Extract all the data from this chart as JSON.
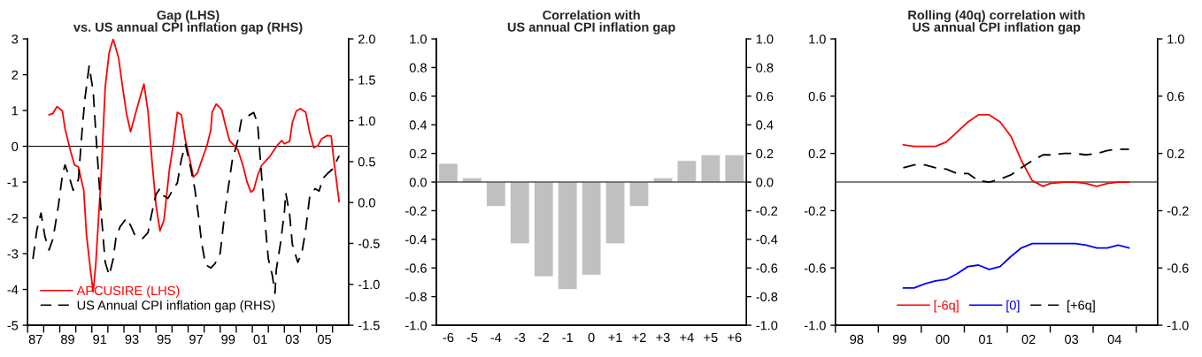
{
  "chart_data": [
    {
      "type": "line",
      "title": "Gap (LHS)\nvs. US annual CPI inflation gap (RHS)",
      "xlim": [
        "1987-01-01",
        "2007-01-01"
      ],
      "xticks": [
        {
          "value": "1987-01-01",
          "label": null
        },
        {
          "value": "1987-07-01",
          "label": "87"
        },
        {
          "value": "1988-01-01",
          "label": null
        },
        {
          "value": "1989-01-01",
          "label": null
        },
        {
          "value": "1989-07-01",
          "label": "89"
        },
        {
          "value": "1990-01-01",
          "label": null
        },
        {
          "value": "1991-01-01",
          "label": null
        },
        {
          "value": "1991-07-01",
          "label": "91"
        },
        {
          "value": "1992-01-01",
          "label": null
        },
        {
          "value": "1993-01-01",
          "label": null
        },
        {
          "value": "1993-07-01",
          "label": "93"
        },
        {
          "value": "1994-01-01",
          "label": null
        },
        {
          "value": "1995-01-01",
          "label": null
        },
        {
          "value": "1995-07-01",
          "label": "95"
        },
        {
          "value": "1996-01-01",
          "label": null
        },
        {
          "value": "1997-01-01",
          "label": null
        },
        {
          "value": "1997-07-01",
          "label": "97"
        },
        {
          "value": "1998-01-01",
          "label": null
        },
        {
          "value": "1999-01-01",
          "label": null
        },
        {
          "value": "1999-07-01",
          "label": "99"
        },
        {
          "value": "2000-01-01",
          "label": null
        },
        {
          "value": "2001-01-01",
          "label": null
        },
        {
          "value": "2001-07-01",
          "label": "01"
        },
        {
          "value": "2002-01-01",
          "label": null
        },
        {
          "value": "2003-01-01",
          "label": null
        },
        {
          "value": "2003-07-01",
          "label": "03"
        },
        {
          "value": "2004-01-01",
          "label": null
        },
        {
          "value": "2005-01-01",
          "label": null
        },
        {
          "value": "2005-07-01",
          "label": "05"
        },
        {
          "value": "2006-01-01",
          "label": null
        }
      ],
      "ylim": [
        -5,
        3
      ],
      "yticks": [
        -5,
        -4,
        -3,
        -2,
        -1,
        0,
        1,
        2,
        3
      ],
      "y2lim": [
        -1.5,
        2.0
      ],
      "y2ticks": [
        {
          "value": -1.5,
          "label": "-1.5"
        },
        {
          "value": -1.0,
          "label": "-1.0"
        },
        {
          "value": -0.5,
          "label": "-0.5"
        },
        {
          "value": 0,
          "label": "0.0"
        },
        {
          "value": 0.5,
          "label": "0.5"
        },
        {
          "value": 1.0,
          "label": "1.0"
        },
        {
          "value": 1.5,
          "label": "1.5"
        },
        {
          "value": 2.0,
          "label": "2.0"
        }
      ],
      "ref_lines": [
        {
          "axis": "y",
          "value": 0,
          "color": "#000000"
        }
      ],
      "legend": "bottom left",
      "series": [
        {
          "name": "APCUSIRE (LHS)",
          "color": "#ff0000",
          "line_style": "solid",
          "x": [
            "1988-05",
            "1988-08",
            "1988-11",
            "1989-03",
            "1989-05",
            "1989-09",
            "1989-12",
            "1990-03",
            "1990-07",
            "1990-09",
            "1990-12",
            "1991-02",
            "1991-04",
            "1991-08",
            "1991-11",
            "1992-02",
            "1992-05",
            "1992-09",
            "1992-12",
            "1993-03",
            "1993-06",
            "1993-09",
            "1993-12",
            "1994-04",
            "1994-07",
            "1994-10",
            "1995-01",
            "1995-04",
            "1995-07",
            "1995-11",
            "1996-02",
            "1996-05",
            "1996-08",
            "1996-11",
            "1997-02",
            "1997-05",
            "1997-08",
            "1997-11",
            "1998-03",
            "1998-06",
            "1998-07",
            "1998-10",
            "1999-02",
            "1999-05",
            "1999-08",
            "1999-11",
            "2000-02",
            "2000-06",
            "2000-09",
            "2000-12",
            "2001-02",
            "2001-05",
            "2001-08",
            "2001-11",
            "2002-02",
            "2002-05",
            "2002-08",
            "2002-11",
            "2003-01",
            "2003-05",
            "2003-07",
            "2003-10",
            "2004-01",
            "2004-05",
            "2004-08",
            "2004-11",
            "2005-02",
            "2005-05",
            "2005-09",
            "2005-12",
            "2006-02",
            "2006-06"
          ],
          "values": [
            0.88,
            0.92,
            1.11,
            0.99,
            0.49,
            -0.12,
            -0.52,
            -0.58,
            -1.23,
            -2.47,
            -3.46,
            -4.07,
            -3.29,
            -0.82,
            1.65,
            2.63,
            3.0,
            2.47,
            1.65,
            0.91,
            0.41,
            0.82,
            1.23,
            1.74,
            0.99,
            -0.41,
            -1.65,
            -2.36,
            -2.06,
            -0.66,
            0.08,
            0.95,
            0.88,
            0.16,
            -0.33,
            -0.86,
            -0.74,
            -0.41,
            0,
            0.45,
            0.95,
            1.18,
            1.03,
            0.58,
            0.16,
            0.04,
            -0.08,
            -0.53,
            -0.99,
            -1.28,
            -1.22,
            -0.82,
            -0.53,
            -0.41,
            -0.29,
            -0.12,
            0.04,
            0.16,
            0.07,
            0.14,
            0.66,
            0.99,
            1.05,
            0.95,
            0.37,
            -0.04,
            0.02,
            0.21,
            0.3,
            0.29,
            -0.41,
            -1.55
          ]
        },
        {
          "name": "US Annual CPI inflation gap (RHS)",
          "color": "#000000",
          "line_style": "dashed",
          "axis": "y2",
          "x": [
            "1987-05",
            "1987-08",
            "1987-11",
            "1988-02",
            "1988-05",
            "1988-08",
            "1988-12",
            "1989-03",
            "1989-05",
            "1989-08",
            "1989-11",
            "1990-03",
            "1990-06",
            "1990-08",
            "1990-11",
            "1991-02",
            "1991-04",
            "1991-08",
            "1991-11",
            "1992-02",
            "1992-05",
            "1992-07",
            "1992-10",
            "1993-03",
            "1993-06",
            "1993-09",
            "1993-12",
            "1994-03",
            "1994-07",
            "1994-10",
            "1995-01",
            "1995-04",
            "1995-07",
            "1995-10",
            "1996-02",
            "1996-05",
            "1996-08",
            "1996-11",
            "1997-03",
            "1997-06",
            "1997-09",
            "1997-11",
            "1998-02",
            "1998-06",
            "1998-09",
            "1999-01",
            "1999-04",
            "1999-07",
            "1999-10",
            "2000-02",
            "2000-05",
            "2000-08",
            "2000-11",
            "2001-02",
            "2001-05",
            "2001-08",
            "2001-11",
            "2002-01",
            "2002-04",
            "2002-06",
            "2002-07",
            "2002-10",
            "2003-01",
            "2003-02",
            "2003-05",
            "2003-07",
            "2003-11",
            "2004-02",
            "2004-05",
            "2004-08",
            "2004-12",
            "2005-03",
            "2005-06",
            "2005-09",
            "2006-01",
            "2006-06"
          ],
          "values": [
            -0.69,
            -0.33,
            -0.13,
            -0.42,
            -0.58,
            -0.44,
            -0.04,
            0.33,
            0.46,
            0.32,
            0.15,
            0.28,
            0.93,
            1.29,
            1.67,
            1.36,
            0.86,
            -0.12,
            -0.73,
            -0.89,
            -0.69,
            -0.44,
            -0.3,
            -0.19,
            -0.28,
            -0.39,
            -0.4,
            -0.44,
            -0.37,
            -0.12,
            0.1,
            0.17,
            0.08,
            0.05,
            0.17,
            0.24,
            0.53,
            0.71,
            0.42,
            0.17,
            -0.19,
            -0.48,
            -0.76,
            -0.8,
            -0.75,
            -0.62,
            -0.19,
            0.17,
            0.51,
            0.75,
            1.02,
            1.04,
            1.07,
            1.1,
            0.97,
            0.32,
            -0.33,
            -0.69,
            -0.89,
            -1.11,
            -0.82,
            -0.51,
            -0.12,
            0.12,
            -0.15,
            -0.51,
            -0.73,
            -0.62,
            -0.33,
            0.08,
            0.17,
            0.14,
            0.3,
            0.35,
            0.41,
            0.57
          ]
        }
      ]
    },
    {
      "type": "bar",
      "title": "Correlation with\nUS annual CPI inflation gap",
      "categories": [
        "-6",
        "-5",
        "-4",
        "-3",
        "-2",
        "-1",
        "0",
        "+1",
        "+2",
        "+3",
        "+4",
        "+5",
        "+6"
      ],
      "values": [
        0.13,
        0.03,
        -0.17,
        -0.43,
        -0.66,
        -0.75,
        -0.65,
        -0.43,
        -0.17,
        0.03,
        0.15,
        0.19,
        0.19
      ],
      "color": "#c0c0c0",
      "ylim": [
        -1.0,
        1.0
      ],
      "yticks": [
        {
          "value": -1.0,
          "label": "-1.0"
        },
        {
          "value": -0.8,
          "label": "-0.8"
        },
        {
          "value": -0.6,
          "label": "-0.6"
        },
        {
          "value": -0.4,
          "label": "-0.4"
        },
        {
          "value": -0.2,
          "label": "-0.2"
        },
        {
          "value": 0,
          "label": "0.0"
        },
        {
          "value": 0.2,
          "label": "0.2"
        },
        {
          "value": 0.4,
          "label": "0.4"
        },
        {
          "value": 0.6,
          "label": "0.6"
        },
        {
          "value": 0.8,
          "label": "0.8"
        },
        {
          "value": 1.0,
          "label": "1.0"
        }
      ],
      "y2lim": [
        -1.0,
        1.0
      ],
      "y2ticks": [
        {
          "value": -1.0,
          "label": "-1.0"
        },
        {
          "value": -0.8,
          "label": "-0.8"
        },
        {
          "value": -0.6,
          "label": "-0.6"
        },
        {
          "value": -0.4,
          "label": "-0.4"
        },
        {
          "value": -0.2,
          "label": "-0.2"
        },
        {
          "value": 0,
          "label": "0.0"
        },
        {
          "value": 0.2,
          "label": "0.2"
        },
        {
          "value": 0.4,
          "label": "0.4"
        },
        {
          "value": 0.6,
          "label": "0.6"
        },
        {
          "value": 0.8,
          "label": "0.8"
        },
        {
          "value": 1.0,
          "label": "1.0"
        }
      ],
      "ref_lines": [
        {
          "axis": "y",
          "value": 0,
          "color": "#000000"
        }
      ]
    },
    {
      "type": "line",
      "title": "Rolling (40q) correlation with\nUS annual CPI inflation gap",
      "xlim": [
        "1998-01-01",
        "2005-07-01"
      ],
      "xticks": [
        {
          "value": "1998-01-01",
          "label": null
        },
        {
          "value": "1998-07-01",
          "label": "98"
        },
        {
          "value": "1999-01-01",
          "label": null
        },
        {
          "value": "1999-07-01",
          "label": "99"
        },
        {
          "value": "2000-01-01",
          "label": null
        },
        {
          "value": "2000-07-01",
          "label": "00"
        },
        {
          "value": "2001-01-01",
          "label": null
        },
        {
          "value": "2001-07-01",
          "label": "01"
        },
        {
          "value": "2002-01-01",
          "label": null
        },
        {
          "value": "2002-07-01",
          "label": "02"
        },
        {
          "value": "2003-01-01",
          "label": null
        },
        {
          "value": "2003-07-01",
          "label": "03"
        },
        {
          "value": "2004-01-01",
          "label": null
        },
        {
          "value": "2004-07-01",
          "label": "04"
        },
        {
          "value": "2005-01-01",
          "label": null
        }
      ],
      "ylim": [
        -1.0,
        1.0
      ],
      "yticks": [
        {
          "value": -1.0,
          "label": "-1.0"
        },
        {
          "value": -0.6,
          "label": "-0.6"
        },
        {
          "value": -0.2,
          "label": "-0.2"
        },
        {
          "value": 0.2,
          "label": "0.2"
        },
        {
          "value": 0.6,
          "label": "0.6"
        },
        {
          "value": 1.0,
          "label": "1.0"
        }
      ],
      "y2lim": [
        -1.0,
        1.0
      ],
      "y2ticks": [
        {
          "value": -1.0,
          "label": "-1.0"
        },
        {
          "value": -0.6,
          "label": "-0.6"
        },
        {
          "value": -0.2,
          "label": "-0.2"
        },
        {
          "value": 0.2,
          "label": "0.2"
        },
        {
          "value": 0.6,
          "label": "0.6"
        },
        {
          "value": 1.0,
          "label": "1.0"
        }
      ],
      "ref_lines": [
        {
          "axis": "y",
          "value": 0,
          "color": "#000000"
        }
      ],
      "legend": "bottom",
      "x": [
        "1999-08",
        "1999-11",
        "2000-02",
        "2000-05",
        "2000-08",
        "2000-11",
        "2001-02",
        "2001-05",
        "2001-08",
        "2001-11",
        "2002-02",
        "2002-05",
        "2002-08",
        "2002-11",
        "2003-01",
        "2003-05",
        "2003-08",
        "2003-11",
        "2004-02",
        "2004-05",
        "2004-08",
        "2004-11"
      ],
      "series": [
        {
          "name": "[-6q]",
          "color": "#ff0000",
          "line_style": "solid",
          "values": [
            0.26,
            0.25,
            0.25,
            0.25,
            0.28,
            0.35,
            0.42,
            0.47,
            0.47,
            0.42,
            0.32,
            0.15,
            0.01,
            -0.03,
            -0.01,
            0,
            0,
            -0.01,
            -0.03,
            -0.01,
            0,
            0
          ]
        },
        {
          "name": "[0]",
          "color": "#0000ff",
          "line_style": "solid",
          "values": [
            -0.74,
            -0.74,
            -0.71,
            -0.69,
            -0.68,
            -0.64,
            -0.59,
            -0.58,
            -0.61,
            -0.59,
            -0.52,
            -0.46,
            -0.43,
            -0.43,
            -0.43,
            -0.43,
            -0.43,
            -0.44,
            -0.46,
            -0.46,
            -0.44,
            -0.46
          ]
        },
        {
          "name": "[+6q]",
          "color": "#000000",
          "line_style": "dashed",
          "values": [
            0.1,
            0.12,
            0.12,
            0.1,
            0.09,
            0.06,
            0.06,
            0.01,
            0,
            0.02,
            0.05,
            0.1,
            0.15,
            0.19,
            0.19,
            0.2,
            0.2,
            0.19,
            0.2,
            0.22,
            0.23,
            0.23
          ]
        }
      ]
    }
  ]
}
